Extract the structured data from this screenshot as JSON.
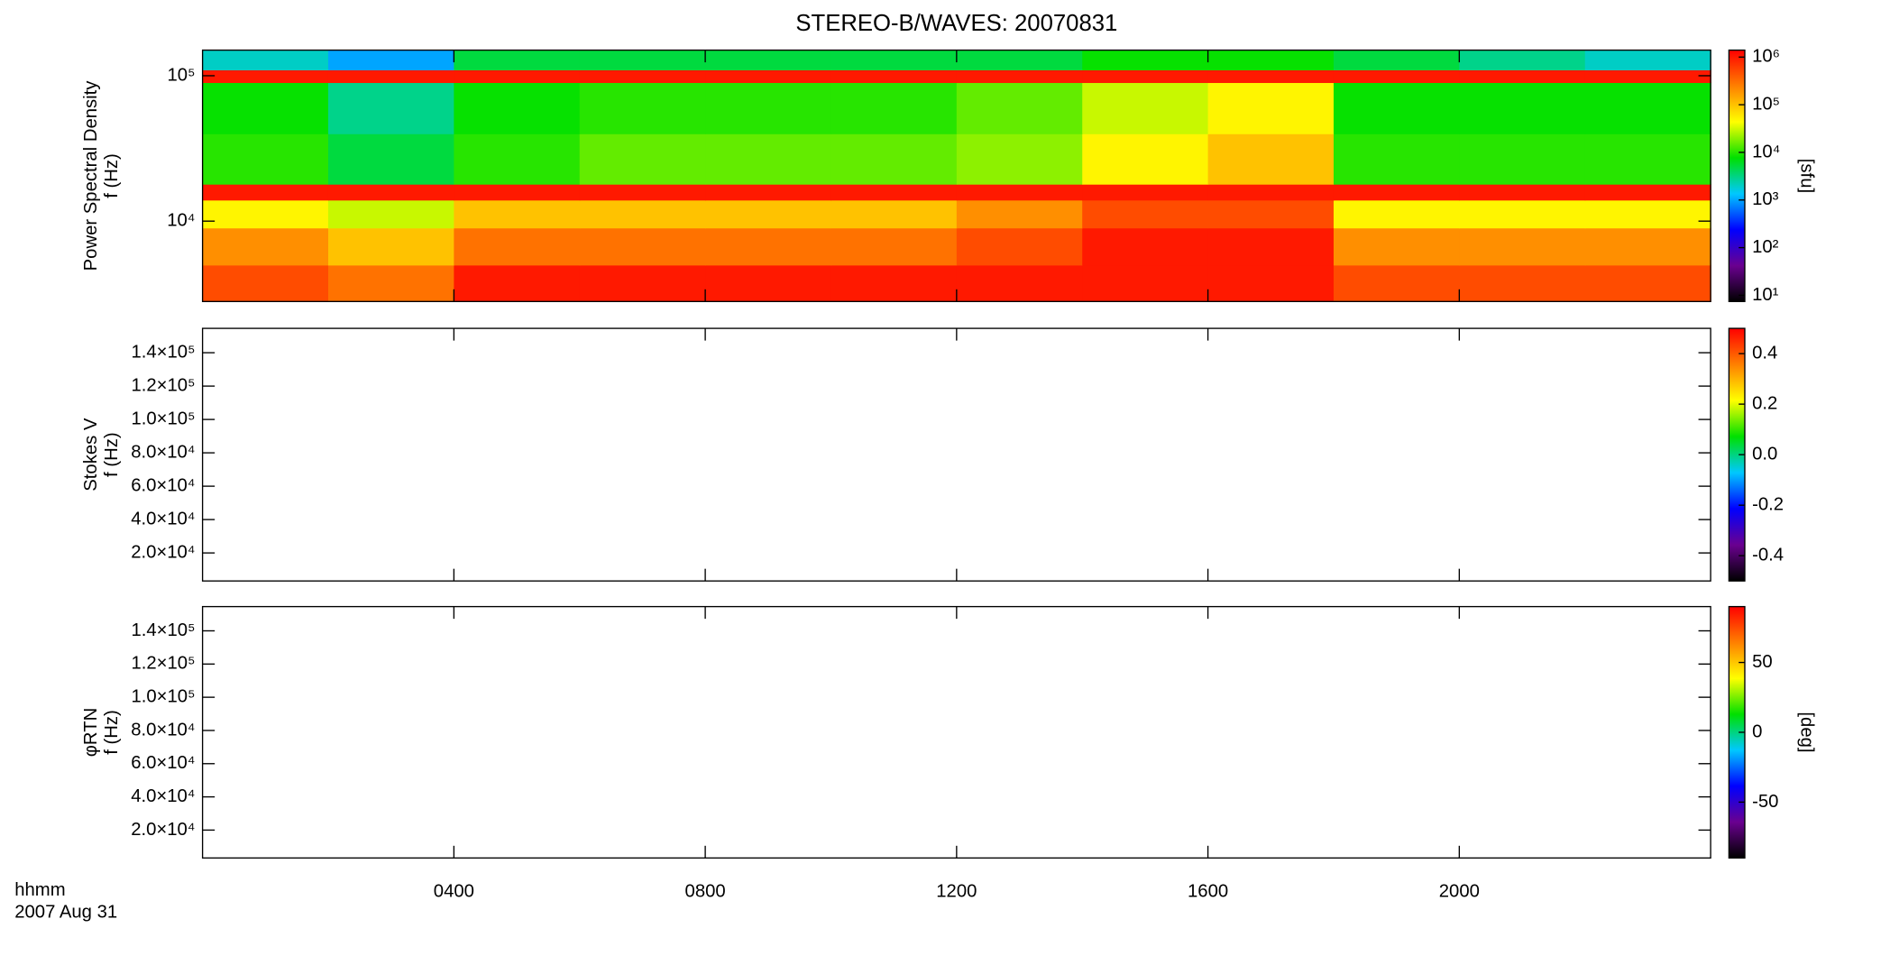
{
  "chart_data": [
    {
      "type": "heatmap",
      "title": "STEREO-B/WAVES: 20070831",
      "ylabel": [
        "Power Spectral Density",
        "f (Hz)"
      ],
      "ylim": [
        2800,
        150000
      ],
      "yscale": "log",
      "yticks": [
        {
          "value": 10000,
          "label": "10⁴"
        },
        {
          "value": 100000,
          "label": "10⁵"
        }
      ],
      "x_edges": [
        0,
        2,
        4,
        6,
        8,
        10,
        12,
        14,
        16,
        18,
        20,
        22,
        24
      ],
      "y_edges": [
        2800,
        5000,
        9000,
        14000,
        18000,
        40000,
        90000,
        110000,
        150000
      ],
      "values": [
        [
          500000,
          300000,
          1000000,
          1000000,
          1000000,
          1000000,
          1000000,
          1000000,
          1000000,
          500000,
          500000,
          500000
        ],
        [
          200000,
          100000,
          300000,
          300000,
          300000,
          300000,
          500000,
          1000000,
          1000000,
          200000,
          200000,
          200000
        ],
        [
          50000,
          30000,
          100000,
          100000,
          100000,
          100000,
          200000,
          500000,
          500000,
          50000,
          50000,
          50000
        ],
        [
          1000000,
          1000000,
          1000000,
          1000000,
          1000000,
          1000000,
          1000000,
          1000000,
          1000000,
          1000000,
          1000000,
          1000000
        ],
        [
          10000,
          5000,
          10000,
          15000,
          15000,
          15000,
          20000,
          50000,
          100000,
          10000,
          10000,
          10000
        ],
        [
          8000,
          3000,
          8000,
          10000,
          10000,
          10000,
          15000,
          30000,
          50000,
          8000,
          8000,
          8000
        ],
        [
          1000000,
          1000000,
          1000000,
          1000000,
          1000000,
          1000000,
          1000000,
          1000000,
          1000000,
          1000000,
          1000000,
          1000000
        ],
        [
          2000,
          1000,
          5000,
          5000,
          5000,
          5000,
          5000,
          8000,
          8000,
          5000,
          3000,
          2000
        ]
      ],
      "clim": [
        7.4,
        1400000
      ],
      "cscale": "log",
      "clabel": "[sfu]",
      "cticks": [
        {
          "value": 10,
          "label": "10¹"
        },
        {
          "value": 100,
          "label": "10²"
        },
        {
          "value": 1000,
          "label": "10³"
        },
        {
          "value": 10000,
          "label": "10⁴"
        },
        {
          "value": 100000,
          "label": "10⁵"
        },
        {
          "value": 1000000,
          "label": "10⁶"
        }
      ],
      "colormap": [
        "#000000",
        "#6a0090",
        "#0000ff",
        "#00c8ff",
        "#00e000",
        "#ffff00",
        "#ff8000",
        "#ff0000"
      ]
    },
    {
      "type": "heatmap",
      "ylabel": [
        "Stokes V",
        "f (Hz)"
      ],
      "ylim": [
        3200,
        154600
      ],
      "yticks": [
        {
          "value": 20000,
          "label": "2.0×10⁴"
        },
        {
          "value": 40000,
          "label": "4.0×10⁴"
        },
        {
          "value": 60000,
          "label": "6.0×10⁴"
        },
        {
          "value": 80000,
          "label": "8.0×10⁴"
        },
        {
          "value": 100000,
          "label": "1.0×10⁵"
        },
        {
          "value": 120000,
          "label": "1.2×10⁵"
        },
        {
          "value": 140000,
          "label": "1.4×10⁵"
        }
      ],
      "clim": [
        -0.5,
        0.5
      ],
      "cticks": [
        -0.4,
        -0.2,
        {
          "value": 0,
          "label": "0.0"
        },
        0.2,
        0.4
      ],
      "colormap": [
        "#000000",
        "#6a0090",
        "#0000ff",
        "#00c8ff",
        "#00e000",
        "#ffff00",
        "#ff8000",
        "#ff0000"
      ]
    },
    {
      "type": "heatmap",
      "ylabel": [
        "φRTN",
        "f (Hz)"
      ],
      "ylim": [
        3200,
        154600
      ],
      "yticks": [
        {
          "value": 20000,
          "label": "2.0×10⁴"
        },
        {
          "value": 40000,
          "label": "4.0×10⁴"
        },
        {
          "value": 60000,
          "label": "6.0×10⁴"
        },
        {
          "value": 80000,
          "label": "8.0×10⁴"
        },
        {
          "value": 100000,
          "label": "1.0×10⁵"
        },
        {
          "value": 120000,
          "label": "1.2×10⁵"
        },
        {
          "value": 140000,
          "label": "1.4×10⁵"
        }
      ],
      "clim": [
        -90,
        90
      ],
      "clabel": "[deg]",
      "cticks": [
        -50,
        0,
        50
      ],
      "colormap": [
        "#000000",
        "#6a0090",
        "#0000ff",
        "#00c8ff",
        "#00e000",
        "#ffff00",
        "#ff8000",
        "#ff0000"
      ],
      "xlabel": [
        "hhmm",
        "2007 Aug 31"
      ],
      "xlim": [
        0,
        24
      ],
      "xticks": [
        {
          "value": 4,
          "label": "0400"
        },
        {
          "value": 8,
          "label": "0800"
        },
        {
          "value": 12,
          "label": "1200"
        },
        {
          "value": 16,
          "label": "1600"
        },
        {
          "value": 20,
          "label": "2000"
        }
      ]
    }
  ]
}
